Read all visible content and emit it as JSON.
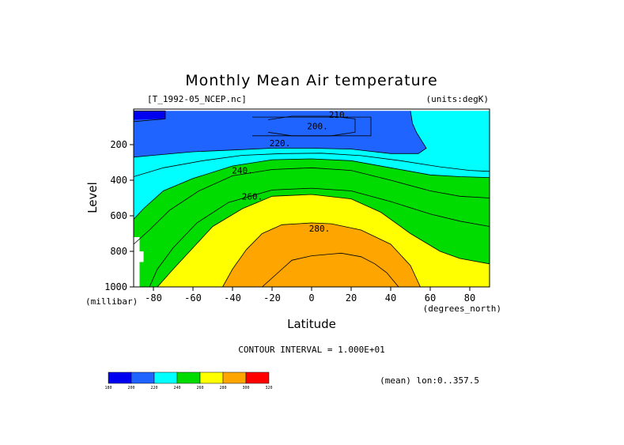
{
  "chart_data": {
    "type": "heatmap",
    "title": "Monthly Mean Air temperature",
    "file_label": "[T_1992-05_NCEP.nc]",
    "units_label": "(units:degK)",
    "xlabel": "Latitude",
    "ylabel": "Level",
    "x_unit": "(degrees_north)",
    "y_unit": "(millibar)",
    "xlim": [
      -90,
      90
    ],
    "ylim": [
      1000,
      0
    ],
    "x_ticks": [
      -80,
      -60,
      -40,
      -20,
      0,
      20,
      40,
      60,
      80
    ],
    "y_ticks": [
      200,
      400,
      600,
      800,
      1000
    ],
    "contour_interval_text": "CONTOUR INTERVAL = 1.000E+01",
    "footer_text": "(mean) lon:0..357.5",
    "colorbar": {
      "boundaries": [
        "180",
        "200",
        "220",
        "240",
        "260",
        "280",
        "300",
        "320"
      ],
      "colors": [
        "#0000f0",
        "#2064ff",
        "#00ffff",
        "#00dc00",
        "#ffff00",
        "#ffa500",
        "#ff0000"
      ]
    },
    "contour_labels": [
      {
        "text": "210.",
        "lat": 14,
        "level": 30
      },
      {
        "text": "200.",
        "lat": 3,
        "level": 95
      },
      {
        "text": "220.",
        "lat": -16,
        "level": 190
      },
      {
        "text": "240.",
        "lat": -35,
        "level": 345
      },
      {
        "text": "260.",
        "lat": -30,
        "level": 490
      },
      {
        "text": "280.",
        "lat": 4,
        "level": 670
      }
    ],
    "bands": [
      {
        "range": "<200",
        "color": "#0000f0",
        "poly": [
          [
            -90,
            10
          ],
          [
            -74,
            10
          ],
          [
            -74,
            55
          ],
          [
            -90,
            70
          ]
        ]
      },
      {
        "range": "<200",
        "color": "#0000f0",
        "poly": [
          [
            -22,
            60
          ],
          [
            -10,
            40
          ],
          [
            10,
            40
          ],
          [
            22,
            55
          ],
          [
            22,
            130
          ],
          [
            10,
            150
          ],
          [
            -10,
            150
          ],
          [
            -22,
            130
          ]
        ]
      },
      {
        "range": "200-220",
        "color": "#2064ff",
        "poly": [
          [
            -90,
            60
          ],
          [
            -74,
            55
          ],
          [
            -74,
            10
          ],
          [
            50,
            10
          ],
          [
            51,
            80
          ],
          [
            53,
            130
          ],
          [
            58,
            220
          ],
          [
            54,
            250
          ],
          [
            40,
            250
          ],
          [
            20,
            225
          ],
          [
            0,
            220
          ],
          [
            -20,
            220
          ],
          [
            -40,
            230
          ],
          [
            -60,
            240
          ],
          [
            -80,
            260
          ],
          [
            -90,
            270
          ]
        ]
      },
      {
        "range": "220-240",
        "color": "#00ffff",
        "poly": [
          [
            -90,
            270
          ],
          [
            -80,
            260
          ],
          [
            -60,
            240
          ],
          [
            -40,
            230
          ],
          [
            -20,
            220
          ],
          [
            0,
            220
          ],
          [
            20,
            225
          ],
          [
            40,
            250
          ],
          [
            54,
            250
          ],
          [
            58,
            220
          ],
          [
            53,
            130
          ],
          [
            51,
            80
          ],
          [
            50,
            10
          ],
          [
            90,
            10
          ],
          [
            90,
            385
          ],
          [
            75,
            380
          ],
          [
            60,
            370
          ],
          [
            40,
            330
          ],
          [
            20,
            290
          ],
          [
            0,
            280
          ],
          [
            -20,
            285
          ],
          [
            -40,
            320
          ],
          [
            -60,
            390
          ],
          [
            -75,
            460
          ],
          [
            -85,
            560
          ],
          [
            -90,
            620
          ]
        ]
      },
      {
        "range": "240-260",
        "color": "#00dc00",
        "poly": [
          [
            -90,
            620
          ],
          [
            -85,
            560
          ],
          [
            -75,
            460
          ],
          [
            -60,
            390
          ],
          [
            -40,
            320
          ],
          [
            -20,
            285
          ],
          [
            0,
            280
          ],
          [
            20,
            290
          ],
          [
            40,
            330
          ],
          [
            60,
            370
          ],
          [
            75,
            380
          ],
          [
            90,
            385
          ],
          [
            90,
            870
          ],
          [
            75,
            840
          ],
          [
            65,
            800
          ],
          [
            50,
            700
          ],
          [
            35,
            580
          ],
          [
            20,
            505
          ],
          [
            0,
            480
          ],
          [
            -20,
            490
          ],
          [
            -35,
            560
          ],
          [
            -50,
            660
          ],
          [
            -60,
            780
          ],
          [
            -70,
            900
          ],
          [
            -78,
            1000
          ],
          [
            -90,
            1000
          ]
        ]
      },
      {
        "range": "260-280",
        "color": "#ffff00",
        "poly": [
          [
            -78,
            1000
          ],
          [
            -70,
            900
          ],
          [
            -60,
            780
          ],
          [
            -50,
            660
          ],
          [
            -35,
            560
          ],
          [
            -20,
            490
          ],
          [
            0,
            480
          ],
          [
            20,
            505
          ],
          [
            35,
            580
          ],
          [
            50,
            700
          ],
          [
            65,
            800
          ],
          [
            75,
            840
          ],
          [
            90,
            870
          ],
          [
            90,
            1000
          ],
          [
            55,
            1000
          ],
          [
            50,
            880
          ],
          [
            40,
            760
          ],
          [
            25,
            680
          ],
          [
            10,
            645
          ],
          [
            0,
            640
          ],
          [
            -15,
            650
          ],
          [
            -25,
            700
          ],
          [
            -33,
            790
          ],
          [
            -40,
            900
          ],
          [
            -45,
            1000
          ]
        ]
      },
      {
        "range": "280-300",
        "color": "#ffa500",
        "poly": [
          [
            -45,
            1000
          ],
          [
            -40,
            900
          ],
          [
            -33,
            790
          ],
          [
            -25,
            700
          ],
          [
            -15,
            650
          ],
          [
            0,
            640
          ],
          [
            10,
            645
          ],
          [
            25,
            680
          ],
          [
            40,
            760
          ],
          [
            50,
            880
          ],
          [
            55,
            1000
          ]
        ]
      },
      {
        "range": "missing",
        "color": "#ffffff",
        "poly": [
          [
            -90,
            720
          ],
          [
            -87,
            720
          ],
          [
            -87,
            800
          ],
          [
            -85,
            800
          ],
          [
            -85,
            860
          ],
          [
            -87,
            860
          ],
          [
            -87,
            1000
          ],
          [
            -90,
            1000
          ]
        ]
      }
    ],
    "contour_lines": [
      [
        [
          -90,
          10
        ],
        [
          -74,
          10
        ],
        [
          -74,
          55
        ],
        [
          -90,
          70
        ]
      ],
      [
        [
          -22,
          60
        ],
        [
          -10,
          40
        ],
        [
          10,
          40
        ],
        [
          22,
          55
        ],
        [
          22,
          130
        ],
        [
          10,
          150
        ],
        [
          -10,
          150
        ],
        [
          -22,
          130
        ]
      ],
      [
        [
          -30,
          45
        ],
        [
          30,
          45
        ],
        [
          30,
          150
        ],
        [
          -30,
          150
        ]
      ],
      [
        [
          -90,
          270
        ],
        [
          -80,
          260
        ],
        [
          -60,
          240
        ],
        [
          -40,
          230
        ],
        [
          -20,
          220
        ],
        [
          0,
          220
        ],
        [
          20,
          225
        ],
        [
          40,
          250
        ],
        [
          54,
          250
        ],
        [
          58,
          220
        ],
        [
          53,
          130
        ],
        [
          51,
          80
        ],
        [
          50,
          10
        ]
      ],
      [
        [
          -90,
          380
        ],
        [
          -75,
          330
        ],
        [
          -55,
          290
        ],
        [
          -35,
          260
        ],
        [
          -15,
          250
        ],
        [
          5,
          248
        ],
        [
          25,
          262
        ],
        [
          45,
          290
        ],
        [
          65,
          325
        ],
        [
          80,
          345
        ],
        [
          90,
          350
        ]
      ],
      [
        [
          -90,
          620
        ],
        [
          -85,
          560
        ],
        [
          -75,
          460
        ],
        [
          -60,
          390
        ],
        [
          -40,
          320
        ],
        [
          -20,
          285
        ],
        [
          0,
          280
        ],
        [
          20,
          290
        ],
        [
          40,
          330
        ],
        [
          60,
          370
        ],
        [
          75,
          380
        ],
        [
          90,
          385
        ]
      ],
      [
        [
          -90,
          760
        ],
        [
          -82,
          680
        ],
        [
          -72,
          570
        ],
        [
          -57,
          460
        ],
        [
          -40,
          375
        ],
        [
          -20,
          340
        ],
        [
          0,
          330
        ],
        [
          20,
          345
        ],
        [
          40,
          400
        ],
        [
          60,
          460
        ],
        [
          75,
          490
        ],
        [
          90,
          500
        ]
      ],
      [
        [
          -82,
          1000
        ],
        [
          -78,
          900
        ],
        [
          -70,
          780
        ],
        [
          -58,
          640
        ],
        [
          -42,
          525
        ],
        [
          -20,
          455
        ],
        [
          0,
          445
        ],
        [
          20,
          460
        ],
        [
          40,
          520
        ],
        [
          60,
          590
        ],
        [
          75,
          630
        ],
        [
          90,
          660
        ]
      ],
      [
        [
          -78,
          1000
        ],
        [
          -70,
          900
        ],
        [
          -60,
          780
        ],
        [
          -50,
          660
        ],
        [
          -35,
          560
        ],
        [
          -20,
          490
        ],
        [
          0,
          480
        ],
        [
          20,
          505
        ],
        [
          35,
          580
        ],
        [
          50,
          700
        ],
        [
          65,
          800
        ],
        [
          75,
          840
        ],
        [
          90,
          870
        ]
      ],
      [
        [
          -45,
          1000
        ],
        [
          -40,
          900
        ],
        [
          -33,
          790
        ],
        [
          -25,
          700
        ],
        [
          -15,
          650
        ],
        [
          0,
          640
        ],
        [
          10,
          645
        ],
        [
          25,
          680
        ],
        [
          40,
          760
        ],
        [
          50,
          880
        ],
        [
          55,
          1000
        ]
      ],
      [
        [
          -25,
          1000
        ],
        [
          -15,
          900
        ],
        [
          -10,
          850
        ],
        [
          0,
          825
        ],
        [
          10,
          815
        ],
        [
          15,
          810
        ],
        [
          25,
          830
        ],
        [
          32,
          870
        ],
        [
          38,
          920
        ],
        [
          44,
          1000
        ]
      ]
    ]
  }
}
